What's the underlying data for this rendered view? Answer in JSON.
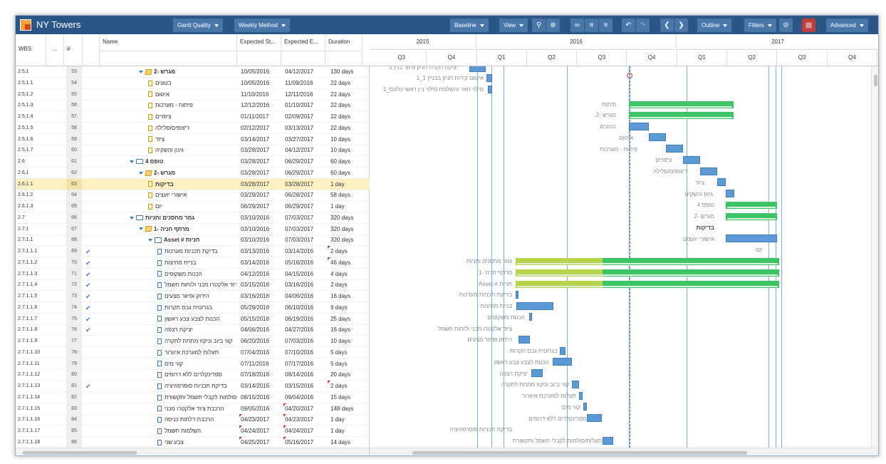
{
  "app": {
    "title": "NY Towers"
  },
  "toolbar": {
    "gantt_quality": "Gantt Quality",
    "weekly_method": "Weekly Method",
    "baseline": "Baseline",
    "view": "View",
    "outline": "Outline",
    "filters": "Filters",
    "advanced": "Advanced"
  },
  "grid": {
    "headers": {
      "wbs": "WBS",
      "dots": "...",
      "num": "#",
      "name": "Name",
      "es": "Expected St...",
      "ee": "Expected E...",
      "dur": "Duration"
    },
    "rows": [
      {
        "wbs": "2.5.1",
        "num": "53",
        "name": "מגרש -2",
        "es": "10/05/2016",
        "ee": "04/12/2017",
        "dur": "130 days",
        "lvl": 4,
        "icon": "stack",
        "bold": true,
        "exp": true
      },
      {
        "wbs": "2.5.1.1",
        "num": "54",
        "name": "בטונים",
        "es": "10/05/2016",
        "ee": "11/09/2016",
        "dur": "22 days",
        "lvl": 5,
        "icon": "doc"
      },
      {
        "wbs": "2.5.1.2",
        "num": "55",
        "name": "איטום",
        "es": "11/10/2016",
        "ee": "12/11/2016",
        "dur": "22 days",
        "lvl": 5,
        "icon": "doc"
      },
      {
        "wbs": "2.5.1.3",
        "num": "56",
        "name": "פיתוח - מערכות",
        "es": "12/12/2016",
        "ee": "01/10/2017",
        "dur": "22 days",
        "lvl": 5,
        "icon": "doc"
      },
      {
        "wbs": "2.5.1.4",
        "num": "57",
        "name": "ציפויים",
        "es": "01/11/2017",
        "ee": "02/09/2017",
        "dur": "22 days",
        "lvl": 5,
        "icon": "doc"
      },
      {
        "wbs": "2.5.1.5",
        "num": "58",
        "name": "ריצופים/סלילה",
        "es": "02/12/2017",
        "ee": "03/13/2017",
        "dur": "22 days",
        "lvl": 5,
        "icon": "doc"
      },
      {
        "wbs": "2.5.1.6",
        "num": "59",
        "name": "ציוד",
        "es": "03/14/2017",
        "ee": "03/27/2017",
        "dur": "10 days",
        "lvl": 5,
        "icon": "doc"
      },
      {
        "wbs": "2.5.1.7",
        "num": "60",
        "name": "גינון והשקיה",
        "es": "03/28/2017",
        "ee": "04/12/2017",
        "dur": "10 days",
        "lvl": 5,
        "icon": "doc"
      },
      {
        "wbs": "2.6",
        "num": "61",
        "name": "טופס 4",
        "es": "03/28/2017",
        "ee": "06/29/2017",
        "dur": "60 days",
        "lvl": 3,
        "icon": "folder",
        "bold": true,
        "exp": true
      },
      {
        "wbs": "2.6.1",
        "num": "62",
        "name": "מגרש -2",
        "es": "03/28/2017",
        "ee": "06/29/2017",
        "dur": "60 days",
        "lvl": 4,
        "icon": "stack",
        "bold": true,
        "exp": true
      },
      {
        "wbs": "2.6.1.1",
        "num": "63",
        "name": "בדיקות",
        "es": "03/28/2017",
        "ee": "03/28/2017",
        "dur": "1 day",
        "lvl": 5,
        "icon": "doc",
        "bold": true,
        "sel": true
      },
      {
        "wbs": "2.6.1.2",
        "num": "64",
        "name": "אישורי יועצים",
        "es": "03/29/2017",
        "ee": "06/28/2017",
        "dur": "58 days",
        "lvl": 5,
        "icon": "doc"
      },
      {
        "wbs": "2.6.1.3",
        "num": "65",
        "name": "יזם",
        "es": "06/29/2017",
        "ee": "06/29/2017",
        "dur": "1 day",
        "lvl": 5,
        "icon": "doc"
      },
      {
        "wbs": "2.7",
        "num": "66",
        "name": "גמר מחסנים וחניות",
        "es": "03/10/2016",
        "ee": "07/03/2017",
        "dur": "320 days",
        "lvl": 3,
        "icon": "folder",
        "bold": true,
        "exp": true
      },
      {
        "wbs": "2.7.1",
        "num": "67",
        "name": "מרתף חניה -1",
        "es": "03/10/2016",
        "ee": "07/03/2017",
        "dur": "320 days",
        "lvl": 4,
        "icon": "stack",
        "bold": true,
        "exp": true
      },
      {
        "wbs": "2.7.1.1",
        "num": "68",
        "name": "Asset # חניות",
        "es": "03/10/2016",
        "ee": "07/03/2017",
        "dur": "320 days",
        "lvl": 5,
        "icon": "book",
        "bold": true,
        "exp": true
      },
      {
        "wbs": "2.7.1.1.1",
        "num": "69",
        "name": "בדיקת תכניות מערכות",
        "es": "03/13/2016",
        "ee": "03/14/2016",
        "dur": "2 days",
        "lvl": 6,
        "icon": "docb",
        "chk": true,
        "dt": true
      },
      {
        "wbs": "2.7.1.1.2",
        "num": "70",
        "name": "בניית מחיצות",
        "es": "03/14/2016",
        "ee": "05/16/2016",
        "dur": "46 days",
        "lvl": 6,
        "icon": "docb",
        "chk": true,
        "dt": true
      },
      {
        "wbs": "2.7.1.1.3",
        "num": "71",
        "name": "הכנות משקופים",
        "es": "04/12/2016",
        "ee": "04/15/2016",
        "dur": "4 days",
        "lvl": 6,
        "icon": "docb",
        "chk": true
      },
      {
        "wbs": "2.7.1.1.4",
        "num": "72",
        "name": "ציוד אלקטרו מכני ולוחות חשמל",
        "es": "03/15/2016",
        "ee": "03/16/2016",
        "dur": "2 days",
        "lvl": 6,
        "icon": "docb",
        "chk": true
      },
      {
        "wbs": "2.7.1.1.5",
        "num": "73",
        "name": "הידוק וּפיזור מצעים",
        "es": "03/16/2016",
        "ee": "04/06/2016",
        "dur": "16 days",
        "lvl": 6,
        "icon": "docb",
        "chk": true
      },
      {
        "wbs": "2.7.1.1.6",
        "num": "74",
        "name": "בגר/טיח גבס תקרות",
        "es": "05/29/2016",
        "ee": "06/10/2016",
        "dur": "9 days",
        "lvl": 6,
        "icon": "docb",
        "chk": true
      },
      {
        "wbs": "2.7.1.1.7",
        "num": "75",
        "name": "הכנות לצבע צבע ראשון",
        "es": "05/15/2016",
        "ee": "06/19/2016",
        "dur": "25 days",
        "lvl": 6,
        "icon": "docb",
        "chk": true
      },
      {
        "wbs": "2.7.1.1.8",
        "num": "76",
        "name": "יציקת רצפה",
        "es": "04/06/2016",
        "ee": "04/27/2016",
        "dur": "16 days",
        "lvl": 6,
        "icon": "docb",
        "chk": true
      },
      {
        "wbs": "2.7.1.1.9",
        "num": "77",
        "name": "קווי ביוב וניקוז מתחת לתקרה",
        "es": "06/20/2016",
        "ee": "07/03/2016",
        "dur": "10 days",
        "lvl": 6,
        "icon": "docb"
      },
      {
        "wbs": "2.7.1.1.10",
        "num": "78",
        "name": "תעלות למערכת איוורור",
        "es": "07/04/2016",
        "ee": "07/10/2016",
        "dur": "5 days",
        "lvl": 6,
        "icon": "docb"
      },
      {
        "wbs": "2.7.1.1.11",
        "num": "79",
        "name": "קווי מים",
        "es": "07/11/2016",
        "ee": "07/17/2016",
        "dur": "5 days",
        "lvl": 6,
        "icon": "docb"
      },
      {
        "wbs": "2.7.1.1.12",
        "num": "80",
        "name": "ספרינקלרים ללא דרופים",
        "es": "07/18/2016",
        "ee": "08/14/2016",
        "dur": "20 days",
        "lvl": 6,
        "icon": "docb"
      },
      {
        "wbs": "2.7.1.1.13",
        "num": "81",
        "name": "בדיקת תכניות סופרפוזיציה",
        "es": "03/14/2016",
        "ee": "03/15/2016",
        "dur": "2 days",
        "lvl": 6,
        "icon": "docb",
        "chk": true,
        "dt": true
      },
      {
        "wbs": "2.7.1.1.14",
        "num": "82",
        "name": "תעלות/סולמות לקבלי חשמל ותקשורת",
        "es": "08/15/2016",
        "ee": "09/04/2016",
        "dur": "15 days",
        "lvl": 6,
        "icon": "docb"
      },
      {
        "wbs": "2.7.1.1.15",
        "num": "83",
        "name": "הרכבת ציוד אלקטרו מכני",
        "es": "09/05/2016",
        "ee": "04/20/2017",
        "dur": "148 days",
        "lvl": 6,
        "icon": "docb",
        "et": true
      },
      {
        "wbs": "2.7.1.1.16",
        "num": "84",
        "name": "הרכבת דלתות כניסה",
        "es": "04/23/2017",
        "ee": "04/23/2017",
        "dur": "1 day",
        "lvl": 6,
        "icon": "docb",
        "st": true,
        "et": true
      },
      {
        "wbs": "2.7.1.1.17",
        "num": "85",
        "name": "השלמות חשמל",
        "es": "04/24/2017",
        "ee": "04/24/2017",
        "dur": "1 day",
        "lvl": 6,
        "icon": "docb",
        "st": true,
        "et": true
      },
      {
        "wbs": "2.7.1.1.18",
        "num": "86",
        "name": "צבע שני",
        "es": "04/25/2017",
        "ee": "05/16/2017",
        "dur": "14 days",
        "lvl": 6,
        "icon": "docb",
        "st": true,
        "et": true
      }
    ]
  },
  "gantt": {
    "years": [
      "2015",
      "2016",
      "2017"
    ],
    "quarters": [
      "Q3",
      "Q4",
      "Q1",
      "Q2",
      "Q3",
      "Q4",
      "Q1",
      "Q2",
      "Q3",
      "Q4"
    ],
    "labels": [
      "יציקת תקרת חניון איזור בנין 2",
      "איטום קירות חניון בבניין 1_1",
      "מילוי חוזר והשלמת מילוי בין ראשי כלונס_1",
      "פיתוח",
      "מגרש -2",
      "בטונים",
      "איטום",
      "פיתוח - מערכות",
      "ציפויים",
      "ריצופים/סלילה",
      "ציוד",
      "גינון והשקיה",
      "טופס 4",
      "מגרש -2",
      "בדיקות",
      "אישורי יועצים",
      "יזם",
      "גמר מחסנים וחניות",
      "מרתף חניה -1",
      "Asset # חניות",
      "בדיקת תכניות מערכות",
      "בניית מחיצות",
      "הכנות משקופים",
      "ציוד אלקטרו מכני ולוחות חשמל",
      "הידוק וּפיזור מצעים",
      "בגר/טיח גבס תקרות",
      "הכנות לצבע צבע ראשון",
      "יציקת רצפה",
      "קווי ביוב וניקוז מתחת לתקרה",
      "תעלות למערכת איוורור",
      "קווי מים",
      "ספרינקלרים ללא דרופים",
      "בדיקת תכניות סופרפוזיציה",
      "תעלות/סולמות לקבלי חשמל ותקשורת"
    ]
  }
}
